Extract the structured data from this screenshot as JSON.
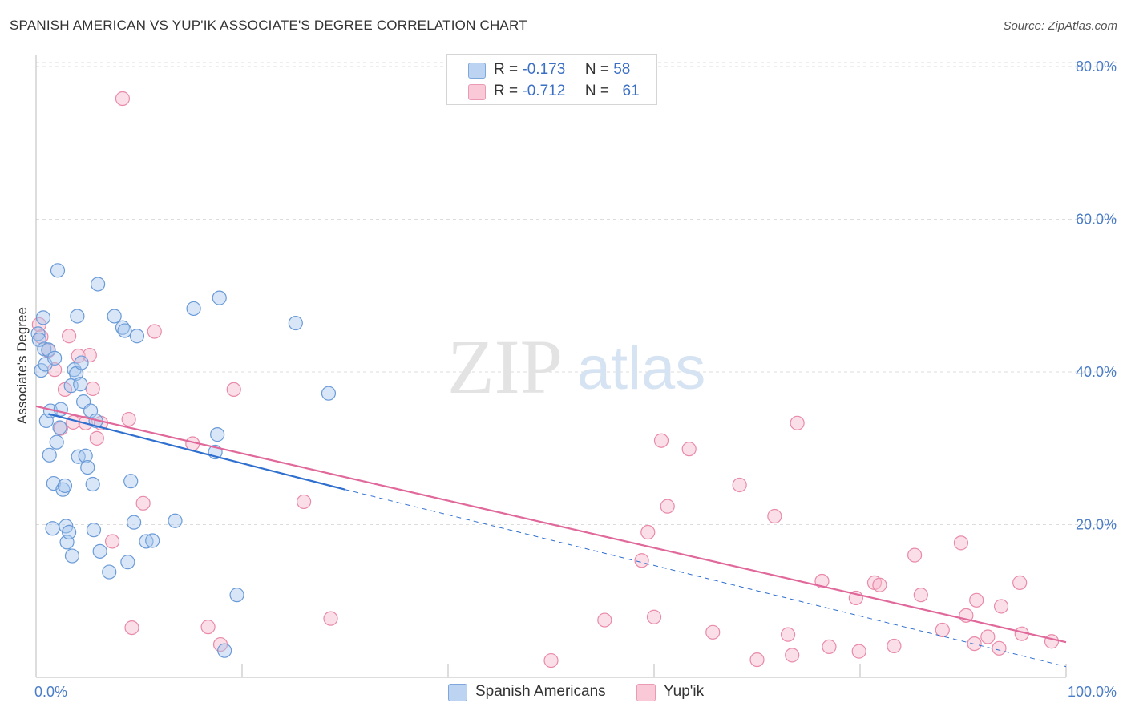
{
  "title": "SPANISH AMERICAN VS YUP'IK ASSOCIATE'S DEGREE CORRELATION CHART",
  "source": "Source: ZipAtlas.com",
  "watermark": {
    "zip": "ZIP",
    "atlas": "atlas"
  },
  "legend": {
    "series1": {
      "r_label": "R =",
      "r_value": "-0.173",
      "n_label": "N =",
      "n_value": "58"
    },
    "series2": {
      "r_label": "R =",
      "r_value": "-0.712",
      "n_label": "N =",
      "n_value": "61"
    }
  },
  "bottom_legend": {
    "series1": "Spanish Americans",
    "series2": "Yup'ik"
  },
  "colors": {
    "blue_fill": "#a9c8ee",
    "blue_stroke": "#6a9bd8",
    "blue_line": "#2f6fcf",
    "pink_fill": "#f6b8cb",
    "pink_stroke": "#e98aa8",
    "pink_line": "#e0689a",
    "grid": "#dddddd",
    "axis_text": "#4a7cc7"
  },
  "chart_data": {
    "type": "scatter",
    "title": "SPANISH AMERICAN VS YUP'IK ASSOCIATE'S DEGREE CORRELATION CHART",
    "xlabel": "",
    "ylabel": "Associate's Degree",
    "xlim": [
      0,
      100
    ],
    "ylim": [
      0,
      85
    ],
    "x_tick_labels": [
      "0.0%",
      "100.0%"
    ],
    "y_ticks": [
      20,
      40,
      60,
      80
    ],
    "y_tick_labels": [
      "20.0%",
      "40.0%",
      "60.0%",
      "80.0%"
    ],
    "grid": true,
    "series": [
      {
        "name": "Spanish Americans",
        "R": -0.173,
        "N": 58,
        "trend": {
          "x0": 1.2,
          "y0": 34.5,
          "x1": 30,
          "y1": 24.6,
          "dashed_to_x": 100,
          "dashed_to_y": 1.4
        },
        "points": [
          [
            0.2,
            45.0
          ],
          [
            0.3,
            44.2
          ],
          [
            0.5,
            40.2
          ],
          [
            0.7,
            47.1
          ],
          [
            0.8,
            43.0
          ],
          [
            0.9,
            41.0
          ],
          [
            1.0,
            33.6
          ],
          [
            1.2,
            42.9
          ],
          [
            1.3,
            29.1
          ],
          [
            1.4,
            34.9
          ],
          [
            1.6,
            19.5
          ],
          [
            1.7,
            25.4
          ],
          [
            1.8,
            41.8
          ],
          [
            2.0,
            30.8
          ],
          [
            2.1,
            53.3
          ],
          [
            2.3,
            32.7
          ],
          [
            2.4,
            35.1
          ],
          [
            2.6,
            24.6
          ],
          [
            2.8,
            25.1
          ],
          [
            2.9,
            19.8
          ],
          [
            3.0,
            17.7
          ],
          [
            3.2,
            19.0
          ],
          [
            3.4,
            38.2
          ],
          [
            3.5,
            15.9
          ],
          [
            3.7,
            40.3
          ],
          [
            3.9,
            39.8
          ],
          [
            4.0,
            47.3
          ],
          [
            4.1,
            28.9
          ],
          [
            4.3,
            38.4
          ],
          [
            4.6,
            36.1
          ],
          [
            4.8,
            29.0
          ],
          [
            5.0,
            27.5
          ],
          [
            5.3,
            34.9
          ],
          [
            5.5,
            25.3
          ],
          [
            5.6,
            19.3
          ],
          [
            5.8,
            33.6
          ],
          [
            6.0,
            51.5
          ],
          [
            6.2,
            16.5
          ],
          [
            7.1,
            13.8
          ],
          [
            7.6,
            47.3
          ],
          [
            8.4,
            45.8
          ],
          [
            8.6,
            45.4
          ],
          [
            8.9,
            15.1
          ],
          [
            9.2,
            25.7
          ],
          [
            9.5,
            20.3
          ],
          [
            9.8,
            44.7
          ],
          [
            10.7,
            17.8
          ],
          [
            11.3,
            17.9
          ],
          [
            13.5,
            20.5
          ],
          [
            15.3,
            48.3
          ],
          [
            17.4,
            29.5
          ],
          [
            17.6,
            31.8
          ],
          [
            17.8,
            49.7
          ],
          [
            18.3,
            3.5
          ],
          [
            19.5,
            10.8
          ],
          [
            25.2,
            46.4
          ],
          [
            28.4,
            37.2
          ],
          [
            4.4,
            41.2
          ]
        ]
      },
      {
        "name": "Yup'ik",
        "R": -0.712,
        "N": 61,
        "trend": {
          "x0": 0,
          "y0": 35.5,
          "x1": 100,
          "y1": 4.6
        },
        "points": [
          [
            0.3,
            46.2
          ],
          [
            0.5,
            44.6
          ],
          [
            1.2,
            42.8
          ],
          [
            1.8,
            40.3
          ],
          [
            2.4,
            32.6
          ],
          [
            2.8,
            37.7
          ],
          [
            3.2,
            44.7
          ],
          [
            3.6,
            33.4
          ],
          [
            4.1,
            42.1
          ],
          [
            4.8,
            33.3
          ],
          [
            5.2,
            42.2
          ],
          [
            5.5,
            37.8
          ],
          [
            5.9,
            31.3
          ],
          [
            6.3,
            33.3
          ],
          [
            7.4,
            17.8
          ],
          [
            8.4,
            75.8
          ],
          [
            9.0,
            33.8
          ],
          [
            9.3,
            6.5
          ],
          [
            10.4,
            22.8
          ],
          [
            11.5,
            45.3
          ],
          [
            15.2,
            30.6
          ],
          [
            16.7,
            6.6
          ],
          [
            17.9,
            4.3
          ],
          [
            19.2,
            37.7
          ],
          [
            26.0,
            23.0
          ],
          [
            28.6,
            7.7
          ],
          [
            50.0,
            2.2
          ],
          [
            55.2,
            7.5
          ],
          [
            58.8,
            15.3
          ],
          [
            59.4,
            19.0
          ],
          [
            60.0,
            7.9
          ],
          [
            60.7,
            31.0
          ],
          [
            61.3,
            22.4
          ],
          [
            63.4,
            29.9
          ],
          [
            65.7,
            5.9
          ],
          [
            68.3,
            25.2
          ],
          [
            70.0,
            2.3
          ],
          [
            71.7,
            21.1
          ],
          [
            73.0,
            5.6
          ],
          [
            73.4,
            2.9
          ],
          [
            73.9,
            33.3
          ],
          [
            76.3,
            12.6
          ],
          [
            77.0,
            4.0
          ],
          [
            79.6,
            10.4
          ],
          [
            79.9,
            3.4
          ],
          [
            81.4,
            12.4
          ],
          [
            81.9,
            12.1
          ],
          [
            83.3,
            4.1
          ],
          [
            85.3,
            16.0
          ],
          [
            85.9,
            10.8
          ],
          [
            88.0,
            6.2
          ],
          [
            89.8,
            17.6
          ],
          [
            90.3,
            8.1
          ],
          [
            91.1,
            4.4
          ],
          [
            91.3,
            10.1
          ],
          [
            92.4,
            5.3
          ],
          [
            93.5,
            3.8
          ],
          [
            93.7,
            9.3
          ],
          [
            95.5,
            12.4
          ],
          [
            95.7,
            5.7
          ],
          [
            98.6,
            4.7
          ]
        ]
      }
    ]
  }
}
